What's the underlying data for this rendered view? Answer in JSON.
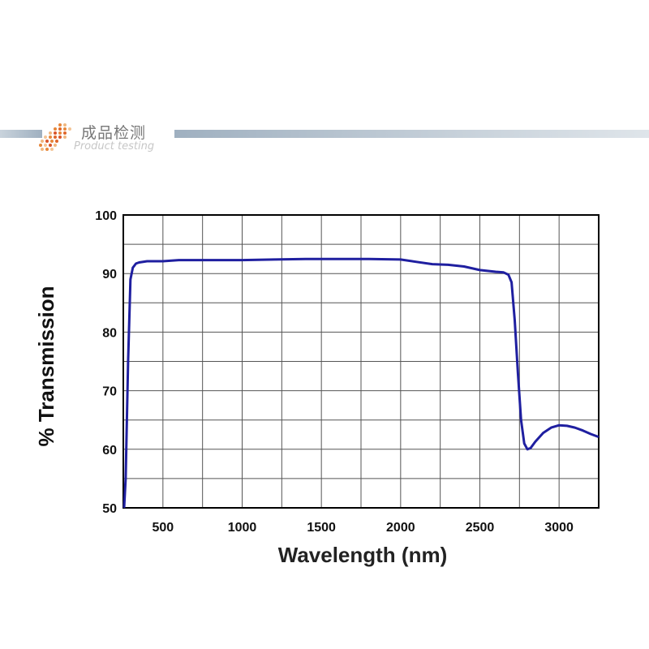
{
  "header": {
    "title_cn": "成品检测",
    "title_en": "Product testing"
  },
  "chart_data": {
    "type": "line",
    "title": "",
    "xlabel": "Wavelength (nm)",
    "ylabel": "% Transmission",
    "xlim": [
      250,
      3250
    ],
    "ylim": [
      50,
      100
    ],
    "x_ticks": [
      500,
      1000,
      1500,
      2000,
      2500,
      3000
    ],
    "y_ticks": [
      50,
      60,
      70,
      80,
      90,
      100
    ],
    "grid": true,
    "series": [
      {
        "color": "#1f1fa0",
        "x": [
          255,
          265,
          280,
          295,
          310,
          330,
          350,
          400,
          500,
          600,
          800,
          1000,
          1200,
          1400,
          1600,
          1800,
          2000,
          2100,
          2200,
          2300,
          2400,
          2500,
          2600,
          2650,
          2680,
          2700,
          2720,
          2740,
          2760,
          2780,
          2800,
          2820,
          2850,
          2900,
          2950,
          3000,
          3050,
          3100,
          3150,
          3200,
          3250
        ],
        "y": [
          50,
          55,
          75,
          89,
          91,
          91.7,
          91.9,
          92.1,
          92.1,
          92.3,
          92.3,
          92.3,
          92.4,
          92.5,
          92.5,
          92.5,
          92.4,
          92.0,
          91.6,
          91.5,
          91.2,
          90.6,
          90.3,
          90.2,
          89.8,
          88.5,
          82,
          73,
          65,
          61,
          60,
          60.2,
          61.3,
          62.8,
          63.7,
          64.1,
          64.0,
          63.7,
          63.2,
          62.6,
          62.1
        ]
      }
    ]
  }
}
